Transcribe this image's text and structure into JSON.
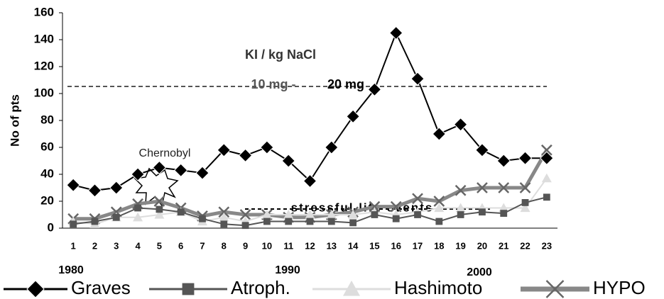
{
  "chart_data": {
    "type": "line",
    "y_label": "No of pts",
    "categories": [
      "1",
      "2",
      "3",
      "4",
      "5",
      "6",
      "7",
      "8",
      "9",
      "10",
      "11",
      "12",
      "13",
      "14",
      "15",
      "16",
      "17",
      "18",
      "19",
      "20",
      "21",
      "22",
      "23"
    ],
    "series": [
      {
        "name": "Graves",
        "color": "#000000",
        "marker": "diamond",
        "values": [
          32,
          28,
          30,
          40,
          45,
          43,
          41,
          58,
          54,
          60,
          50,
          35,
          60,
          83,
          103,
          145,
          111,
          70,
          77,
          58,
          50,
          52,
          52
        ]
      },
      {
        "name": "Atroph.",
        "color": "#555555",
        "marker": "square",
        "values": [
          3,
          5,
          8,
          15,
          14,
          12,
          7,
          3,
          2,
          5,
          5,
          5,
          5,
          4,
          10,
          7,
          10,
          5,
          10,
          12,
          11,
          19,
          23
        ]
      },
      {
        "name": "Hashimoto",
        "color": "#dddddd",
        "marker": "triangle",
        "values": [
          5,
          3,
          8,
          8,
          10,
          12,
          5,
          8,
          5,
          10,
          10,
          10,
          10,
          10,
          12,
          10,
          12,
          15,
          15,
          15,
          15,
          15,
          37
        ]
      },
      {
        "name": "HYPO",
        "color": "#888888",
        "marker": "x",
        "values": [
          7,
          7,
          12,
          18,
          20,
          15,
          9,
          12,
          10,
          10,
          8,
          8,
          10,
          12,
          16,
          16,
          22,
          20,
          28,
          30,
          30,
          30,
          58
        ]
      }
    ],
    "ylim": [
      0,
      160
    ],
    "yticks": [
      0,
      20,
      40,
      60,
      80,
      100,
      120,
      140,
      160
    ],
    "annotations": {
      "iodine": "KI /  kg NaCl",
      "dose1": "10 mg -",
      "dose2": "20 mg",
      "event": "Chernobyl",
      "stress": "stressful life events",
      "year1": "1980",
      "year2": "1990",
      "year3": "2000"
    },
    "legend": "bottom"
  }
}
